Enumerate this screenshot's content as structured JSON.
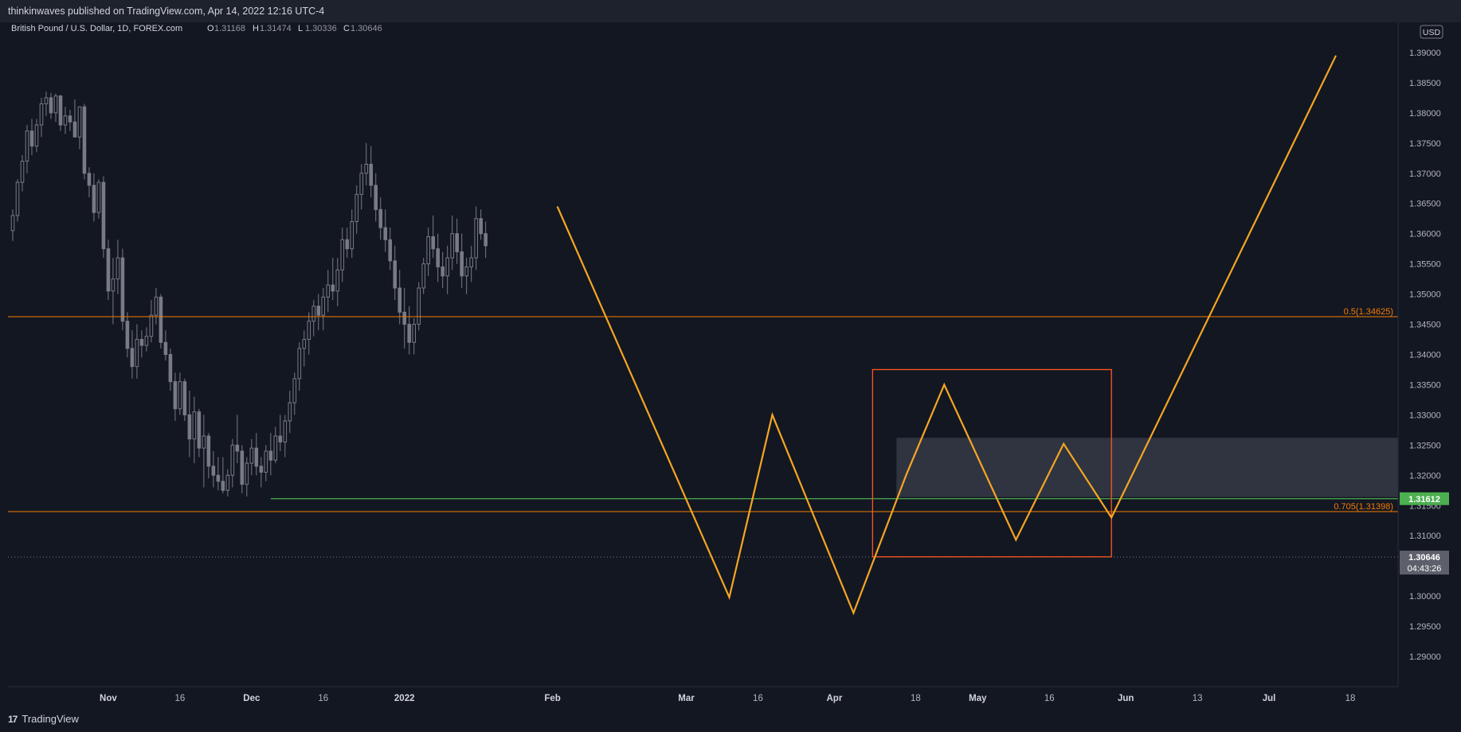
{
  "header": {
    "published": "thinkinwaves published on TradingView.com, Apr 14, 2022 12:16 UTC-4"
  },
  "legend": {
    "symbol": "British Pound / U.S. Dollar, 1D, FOREX.com",
    "o_label": "O",
    "o_value": "1.31168",
    "h_label": "H",
    "h_value": "1.31474",
    "l_label": "L",
    "l_value": "1.30336",
    "c_label": "C",
    "c_value": "1.30646"
  },
  "footer": {
    "brand": "TradingView",
    "brand_mark": "17"
  },
  "colors": {
    "background": "#131722",
    "candle_up": "#787b86",
    "candle_down": "#787b86",
    "fib_line": "#f57c00",
    "projection": "#f5a623",
    "support": "#4caf50",
    "box": "#ff5722",
    "zone": "#363a45"
  },
  "chart_data": {
    "type": "candlestick",
    "currency": "USD",
    "ylim": [
      1.285,
      1.395
    ],
    "y_ticks": [
      "1.39000",
      "1.38500",
      "1.38000",
      "1.37500",
      "1.37000",
      "1.36500",
      "1.36000",
      "1.35500",
      "1.35000",
      "1.34500",
      "1.34000",
      "1.33500",
      "1.33000",
      "1.32500",
      "1.32000",
      "1.31500",
      "1.31000",
      "1.30500",
      "1.30000",
      "1.29500",
      "1.29000"
    ],
    "x_ticks": [
      {
        "label": "Nov",
        "day": 28,
        "bold": true
      },
      {
        "label": "16",
        "day": 43
      },
      {
        "label": "Dec",
        "day": 58,
        "bold": true
      },
      {
        "label": "16",
        "day": 73
      },
      {
        "label": "2022",
        "day": 90,
        "bold": true
      },
      {
        "label": "Feb",
        "day": 121,
        "bold": true
      },
      {
        "label": "Mar",
        "day": 149,
        "bold": true
      },
      {
        "label": "16",
        "day": 164
      },
      {
        "label": "Apr",
        "day": 180,
        "bold": true
      },
      {
        "label": "18",
        "day": 197
      },
      {
        "label": "May",
        "day": 210,
        "bold": true
      },
      {
        "label": "16",
        "day": 225
      },
      {
        "label": "Jun",
        "day": 241,
        "bold": true
      },
      {
        "label": "13",
        "day": 256
      },
      {
        "label": "Jul",
        "day": 271,
        "bold": true
      },
      {
        "label": "18",
        "day": 288
      }
    ],
    "x_range_days": [
      7,
      298
    ],
    "candles_ohlc_by_day_offset": [
      [
        8,
        1.3605,
        1.364,
        1.3588,
        1.363
      ],
      [
        9,
        1.363,
        1.369,
        1.362,
        1.3685
      ],
      [
        10,
        1.3685,
        1.373,
        1.367,
        1.372
      ],
      [
        11,
        1.372,
        1.378,
        1.37,
        1.377
      ],
      [
        12,
        1.377,
        1.379,
        1.373,
        1.3745
      ],
      [
        13,
        1.3745,
        1.379,
        1.3735,
        1.378
      ],
      [
        14,
        1.378,
        1.3825,
        1.376,
        1.3815
      ],
      [
        15,
        1.3815,
        1.3835,
        1.3795,
        1.3825
      ],
      [
        16,
        1.3825,
        1.3833,
        1.379,
        1.38
      ],
      [
        17,
        1.38,
        1.3832,
        1.3785,
        1.3828
      ],
      [
        18,
        1.3828,
        1.383,
        1.377,
        1.378
      ],
      [
        19,
        1.378,
        1.381,
        1.3765,
        1.3795
      ],
      [
        20,
        1.3795,
        1.3805,
        1.377,
        1.3785
      ],
      [
        21,
        1.3785,
        1.3822,
        1.3775,
        1.376
      ],
      [
        22,
        1.376,
        1.379,
        1.374,
        1.381
      ],
      [
        23,
        1.381,
        1.3815,
        1.369,
        1.37
      ],
      [
        24,
        1.37,
        1.371,
        1.366,
        1.368
      ],
      [
        25,
        1.368,
        1.37,
        1.362,
        1.3635
      ],
      [
        26,
        1.3635,
        1.369,
        1.3625,
        1.3685
      ],
      [
        27,
        1.3685,
        1.3695,
        1.356,
        1.3575
      ],
      [
        28,
        1.3575,
        1.359,
        1.349,
        1.3505
      ],
      [
        29,
        1.3505,
        1.356,
        1.345,
        1.3525
      ],
      [
        30,
        1.3525,
        1.359,
        1.35,
        1.356
      ],
      [
        31,
        1.356,
        1.3575,
        1.344,
        1.3455
      ],
      [
        32,
        1.3455,
        1.347,
        1.3395,
        1.341
      ],
      [
        33,
        1.341,
        1.344,
        1.336,
        1.338
      ],
      [
        34,
        1.338,
        1.345,
        1.336,
        1.3425
      ],
      [
        35,
        1.3425,
        1.344,
        1.3395,
        1.3415
      ],
      [
        36,
        1.3415,
        1.3445,
        1.3405,
        1.343
      ],
      [
        37,
        1.343,
        1.349,
        1.342,
        1.3465
      ],
      [
        38,
        1.3465,
        1.351,
        1.345,
        1.3495
      ],
      [
        39,
        1.3495,
        1.35,
        1.341,
        1.342
      ],
      [
        40,
        1.342,
        1.344,
        1.339,
        1.34
      ],
      [
        41,
        1.34,
        1.341,
        1.334,
        1.3355
      ],
      [
        42,
        1.3355,
        1.337,
        1.329,
        1.331
      ],
      [
        43,
        1.331,
        1.337,
        1.33,
        1.3355
      ],
      [
        44,
        1.3355,
        1.336,
        1.329,
        1.33
      ],
      [
        45,
        1.33,
        1.334,
        1.323,
        1.326
      ],
      [
        46,
        1.326,
        1.333,
        1.322,
        1.3305
      ],
      [
        47,
        1.3305,
        1.331,
        1.323,
        1.3245
      ],
      [
        48,
        1.3245,
        1.33,
        1.318,
        1.3265
      ],
      [
        49,
        1.3265,
        1.327,
        1.3195,
        1.3215
      ],
      [
        50,
        1.3215,
        1.324,
        1.318,
        1.32
      ],
      [
        51,
        1.32,
        1.323,
        1.3175,
        1.319
      ],
      [
        52,
        1.319,
        1.323,
        1.317,
        1.3175
      ],
      [
        53,
        1.3175,
        1.321,
        1.3165,
        1.32
      ],
      [
        54,
        1.32,
        1.326,
        1.318,
        1.325
      ],
      [
        55,
        1.325,
        1.33,
        1.322,
        1.324
      ],
      [
        56,
        1.324,
        1.325,
        1.317,
        1.3185
      ],
      [
        57,
        1.3185,
        1.323,
        1.3165,
        1.322
      ],
      [
        58,
        1.322,
        1.326,
        1.32,
        1.3245
      ],
      [
        59,
        1.3245,
        1.327,
        1.32,
        1.3215
      ],
      [
        60,
        1.3215,
        1.323,
        1.318,
        1.3205
      ],
      [
        61,
        1.3205,
        1.325,
        1.319,
        1.324
      ],
      [
        62,
        1.324,
        1.327,
        1.32,
        1.3225
      ],
      [
        63,
        1.3225,
        1.328,
        1.322,
        1.3265
      ],
      [
        64,
        1.3265,
        1.33,
        1.324,
        1.3255
      ],
      [
        65,
        1.3255,
        1.33,
        1.323,
        1.329
      ],
      [
        66,
        1.329,
        1.334,
        1.327,
        1.332
      ],
      [
        67,
        1.332,
        1.337,
        1.33,
        1.336
      ],
      [
        68,
        1.336,
        1.342,
        1.334,
        1.341
      ],
      [
        69,
        1.341,
        1.344,
        1.338,
        1.3425
      ],
      [
        70,
        1.3425,
        1.347,
        1.34,
        1.3455
      ],
      [
        71,
        1.3455,
        1.349,
        1.343,
        1.348
      ],
      [
        72,
        1.348,
        1.35,
        1.344,
        1.3465
      ],
      [
        73,
        1.3465,
        1.351,
        1.344,
        1.3495
      ],
      [
        74,
        1.3495,
        1.354,
        1.347,
        1.3515
      ],
      [
        75,
        1.3515,
        1.356,
        1.349,
        1.3505
      ],
      [
        76,
        1.3505,
        1.356,
        1.348,
        1.354
      ],
      [
        77,
        1.354,
        1.361,
        1.352,
        1.359
      ],
      [
        78,
        1.359,
        1.361,
        1.356,
        1.3575
      ],
      [
        79,
        1.3575,
        1.364,
        1.356,
        1.362
      ],
      [
        80,
        1.362,
        1.368,
        1.36,
        1.3665
      ],
      [
        81,
        1.3665,
        1.3715,
        1.364,
        1.37
      ],
      [
        82,
        1.37,
        1.375,
        1.368,
        1.3715
      ],
      [
        83,
        1.3715,
        1.3745,
        1.366,
        1.368
      ],
      [
        84,
        1.368,
        1.37,
        1.362,
        1.364
      ],
      [
        85,
        1.364,
        1.366,
        1.359,
        1.361
      ],
      [
        86,
        1.361,
        1.364,
        1.357,
        1.359
      ],
      [
        87,
        1.359,
        1.361,
        1.354,
        1.3555
      ],
      [
        88,
        1.3555,
        1.358,
        1.349,
        1.351
      ],
      [
        89,
        1.351,
        1.354,
        1.345,
        1.347
      ],
      [
        90,
        1.347,
        1.351,
        1.341,
        1.345
      ],
      [
        91,
        1.345,
        1.348,
        1.34,
        1.342
      ],
      [
        92,
        1.342,
        1.346,
        1.34,
        1.345
      ],
      [
        93,
        1.345,
        1.352,
        1.344,
        1.351
      ],
      [
        94,
        1.351,
        1.356,
        1.35,
        1.355
      ],
      [
        95,
        1.355,
        1.361,
        1.353,
        1.3595
      ],
      [
        96,
        1.3595,
        1.363,
        1.356,
        1.3575
      ],
      [
        97,
        1.3575,
        1.36,
        1.352,
        1.3545
      ],
      [
        98,
        1.3545,
        1.357,
        1.351,
        1.353
      ],
      [
        99,
        1.353,
        1.358,
        1.35,
        1.356
      ],
      [
        100,
        1.356,
        1.363,
        1.354,
        1.36
      ],
      [
        101,
        1.36,
        1.3625,
        1.355,
        1.357
      ],
      [
        102,
        1.357,
        1.36,
        1.351,
        1.353
      ],
      [
        103,
        1.353,
        1.356,
        1.35,
        1.3545
      ],
      [
        104,
        1.3545,
        1.358,
        1.352,
        1.356
      ],
      [
        105,
        1.356,
        1.3645,
        1.354,
        1.3625
      ],
      [
        106,
        1.3625,
        1.364,
        1.359,
        1.36
      ],
      [
        107,
        1.36,
        1.362,
        1.356,
        1.358
      ]
    ],
    "fib_levels": [
      {
        "label": "0.5(1.34625)",
        "value": 1.34625
      },
      {
        "label": "0.705(1.31398)",
        "value": 1.31398
      }
    ],
    "support_price": 1.31612,
    "support_label": "1.31612",
    "last_price": 1.30646,
    "last_label": "1.30646",
    "countdown": "04:43:26",
    "projection_path": [
      {
        "day": 122,
        "price": 1.3645
      },
      {
        "day": 158,
        "price": 1.2998
      },
      {
        "day": 167,
        "price": 1.33
      },
      {
        "day": 184,
        "price": 1.2972
      },
      {
        "day": 195,
        "price": 1.32
      },
      {
        "day": 203,
        "price": 1.335
      },
      {
        "day": 218,
        "price": 1.3093
      },
      {
        "day": 228,
        "price": 1.3252
      },
      {
        "day": 238,
        "price": 1.313
      },
      {
        "day": 285,
        "price": 1.3895
      }
    ],
    "target_box": {
      "day_start": 188,
      "day_end": 238,
      "price_high": 1.3375,
      "price_low": 1.3065
    },
    "demand_zone": {
      "day_start": 193,
      "price_high": 1.3262,
      "price_low": 1.3164
    }
  }
}
